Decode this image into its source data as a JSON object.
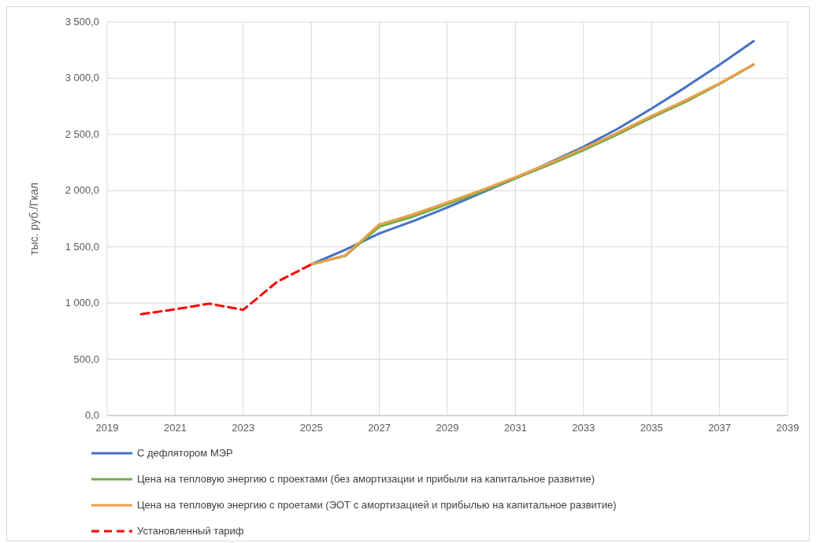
{
  "chart_data": {
    "type": "line",
    "ylabel": "тыс. руб./Гкал",
    "xlim": [
      2019,
      2039
    ],
    "xticks": [
      2019,
      2021,
      2023,
      2025,
      2027,
      2029,
      2031,
      2033,
      2035,
      2037,
      2039
    ],
    "ylim": [
      0,
      3500
    ],
    "yticks": [
      {
        "value": 0,
        "label": "0,0"
      },
      {
        "value": 500,
        "label": "500,0"
      },
      {
        "value": 1000,
        "label": "1 000,0"
      },
      {
        "value": 1500,
        "label": "1 500,0"
      },
      {
        "value": 2000,
        "label": "2 000,0"
      },
      {
        "value": 2500,
        "label": "2 500,0"
      },
      {
        "value": 3000,
        "label": "3 000,0"
      },
      {
        "value": 3500,
        "label": "3 500,0"
      }
    ],
    "grid": true,
    "legend": "bottom",
    "series": [
      {
        "name": "С дефлятором МЭР",
        "color": "#4472c4",
        "x": [
          2025,
          2026,
          2027,
          2028,
          2029,
          2030,
          2031,
          2032,
          2033,
          2034,
          2035,
          2036,
          2037,
          2038
        ],
        "values": [
          1344,
          1475,
          1620,
          1730,
          1850,
          1980,
          2110,
          2250,
          2390,
          2550,
          2730,
          2920,
          3120,
          3330
        ]
      },
      {
        "name": "Цена на тепловую энергию  с проектами (без амортизации и прибыли на капитальное развитие)",
        "color": "#70ad47",
        "x": [
          2025,
          2026,
          2027,
          2028,
          2029,
          2030,
          2031,
          2032,
          2033,
          2034,
          2035,
          2036,
          2037,
          2038
        ],
        "values": [
          1344,
          1420,
          1680,
          1770,
          1880,
          1990,
          2110,
          2230,
          2360,
          2500,
          2650,
          2790,
          2950,
          3120
        ]
      },
      {
        "name": "Цена на тепловую энергию с проетами (ЭОТ с амортизацией и прибылью на капитальное развитие)",
        "color": "#ed9f4a",
        "x": [
          2025,
          2026,
          2027,
          2028,
          2029,
          2030,
          2031,
          2032,
          2033,
          2034,
          2035,
          2036,
          2037,
          2038
        ],
        "values": [
          1344,
          1425,
          1700,
          1790,
          1895,
          2005,
          2120,
          2245,
          2375,
          2515,
          2665,
          2805,
          2955,
          3125
        ]
      },
      {
        "name": "Установленный тариф",
        "color": "#ff0000",
        "line_style": "dashed",
        "x": [
          2020,
          2021,
          2022,
          2023,
          2024,
          2025
        ],
        "values": [
          901,
          945,
          995,
          940,
          1190,
          1344
        ]
      }
    ]
  }
}
